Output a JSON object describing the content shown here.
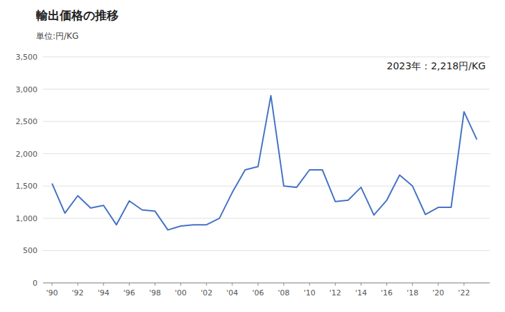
{
  "chart_data": {
    "type": "line",
    "title": "輸出価格の推移",
    "subtitle": "単位:円/KG",
    "annotation": "2023年：2,218円/KG",
    "x": [
      1990,
      1991,
      1992,
      1993,
      1994,
      1995,
      1996,
      1997,
      1998,
      1999,
      2000,
      2001,
      2002,
      2003,
      2004,
      2005,
      2006,
      2007,
      2008,
      2009,
      2010,
      2011,
      2012,
      2013,
      2014,
      2015,
      2016,
      2017,
      2018,
      2019,
      2020,
      2021,
      2022,
      2023
    ],
    "values": [
      1540,
      1080,
      1350,
      1160,
      1200,
      900,
      1270,
      1130,
      1110,
      820,
      880,
      900,
      900,
      1000,
      1400,
      1750,
      1800,
      2900,
      1500,
      1480,
      1750,
      1750,
      1260,
      1280,
      1480,
      1050,
      1280,
      1670,
      1500,
      1060,
      1170,
      1170,
      2650,
      2218
    ],
    "color": "#4472C4",
    "xlim": [
      1989.3,
      2024.0
    ],
    "xticks": [
      {
        "value": 1990,
        "label": "'90"
      },
      {
        "value": 1992,
        "label": "'92"
      },
      {
        "value": 1994,
        "label": "'94"
      },
      {
        "value": 1996,
        "label": "'96"
      },
      {
        "value": 1998,
        "label": "'98"
      },
      {
        "value": 2000,
        "label": "'00"
      },
      {
        "value": 2002,
        "label": "'02"
      },
      {
        "value": 2004,
        "label": "'04"
      },
      {
        "value": 2006,
        "label": "'06"
      },
      {
        "value": 2008,
        "label": "'08"
      },
      {
        "value": 2010,
        "label": "'10"
      },
      {
        "value": 2012,
        "label": "'12"
      },
      {
        "value": 2014,
        "label": "'14"
      },
      {
        "value": 2016,
        "label": "'16"
      },
      {
        "value": 2018,
        "label": "'18"
      },
      {
        "value": 2020,
        "label": "'20"
      },
      {
        "value": 2022,
        "label": "'22"
      }
    ],
    "ylim": [
      0,
      3500
    ],
    "yticks": [
      0,
      500,
      {
        "value": 1000,
        "label": "1,000"
      },
      {
        "value": 1500,
        "label": "1,500"
      },
      {
        "value": 2000,
        "label": "2,000"
      },
      {
        "value": 2500,
        "label": "2,500"
      },
      {
        "value": 3000,
        "label": "3,000"
      },
      {
        "value": 3500,
        "label": "3,500"
      }
    ],
    "grid": true
  }
}
